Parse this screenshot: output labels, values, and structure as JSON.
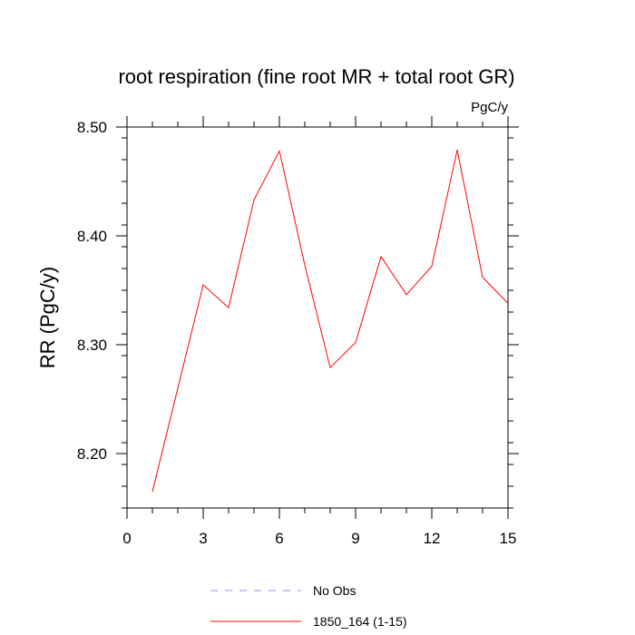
{
  "chart_data": {
    "type": "line",
    "title": "root respiration (fine root MR + total root GR)",
    "units_label": "PgC/y",
    "ylabel": "RR  (PgC/y)",
    "xlabel": "",
    "xlim": [
      0,
      15
    ],
    "ylim": [
      8.15,
      8.5
    ],
    "x_ticks": [
      0,
      3,
      6,
      9,
      12,
      15
    ],
    "x_tick_labels": [
      "0",
      "3",
      "6",
      "9",
      "12",
      "15"
    ],
    "y_ticks": [
      8.2,
      8.3,
      8.4,
      8.5
    ],
    "y_tick_labels": [
      "8.20",
      "8.30",
      "8.40",
      "8.50"
    ],
    "grid": false,
    "series": [
      {
        "name": "1850_164 (1-15)",
        "color": "#ff0000",
        "x": [
          1,
          2,
          3,
          4,
          5,
          6,
          7,
          8,
          9,
          10,
          11,
          12,
          13,
          14,
          15
        ],
        "values": [
          8.165,
          8.26,
          8.355,
          8.334,
          8.433,
          8.478,
          8.373,
          8.279,
          8.302,
          8.381,
          8.346,
          8.372,
          8.479,
          8.362,
          8.338
        ]
      }
    ],
    "legend": [
      {
        "label": "No Obs",
        "color": "#8888ff",
        "style": "dashed"
      },
      {
        "label": "1850_164 (1-15)",
        "color": "#ff0000",
        "style": "solid"
      }
    ],
    "legend_placement": "bottom"
  }
}
